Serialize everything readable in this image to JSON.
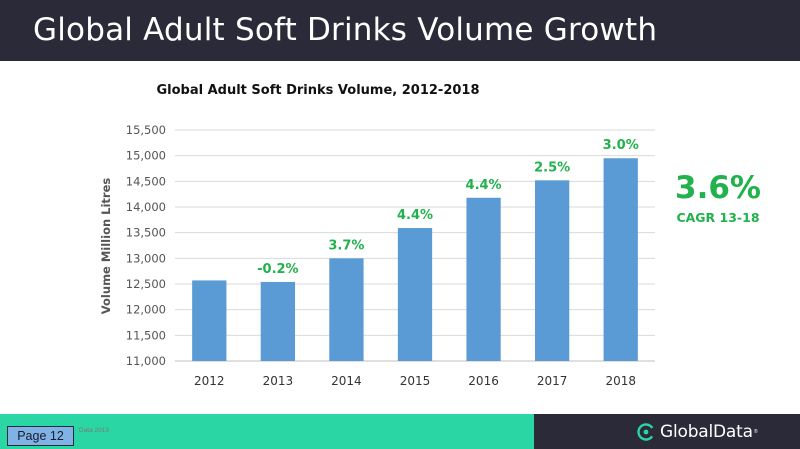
{
  "slide": {
    "title": "Global Adult Soft Drinks Volume Growth"
  },
  "chart_data": {
    "type": "bar",
    "title": "Global Adult Soft Drinks Volume, 2012-2018",
    "xlabel": "",
    "ylabel": "Volume Million Litres",
    "categories": [
      "2012",
      "2013",
      "2014",
      "2015",
      "2016",
      "2017",
      "2018"
    ],
    "values": [
      12570,
      12540,
      13000,
      13590,
      14180,
      14520,
      14950
    ],
    "growth_labels": [
      "",
      "-0.2%",
      "3.7%",
      "4.4%",
      "4.4%",
      "2.5%",
      "3.0%"
    ],
    "ylim": [
      11000,
      15500
    ],
    "yticks": [
      11000,
      11500,
      12000,
      12500,
      13000,
      13500,
      14000,
      14500,
      15000,
      15500
    ],
    "ytick_labels": [
      "11,000",
      "11,500",
      "12,000",
      "12,500",
      "13,000",
      "13,500",
      "14,000",
      "14,500",
      "15,000",
      "15,500"
    ],
    "grid": true,
    "legend": "none",
    "bar_color": "#5b9bd5",
    "label_color": "#22b14c"
  },
  "cagr": {
    "value": "3.6%",
    "label": "CAGR 13-18"
  },
  "footer": {
    "page_label": "Page 12",
    "source": "Data 2019",
    "logo_text": "GlobalData",
    "logo_mark": "®",
    "colors": {
      "green": "#2ad6a3",
      "dark": "#2b2a38",
      "badge": "#7fb2e5"
    }
  },
  "icons": {
    "logo": "globaldata-logo-icon"
  }
}
